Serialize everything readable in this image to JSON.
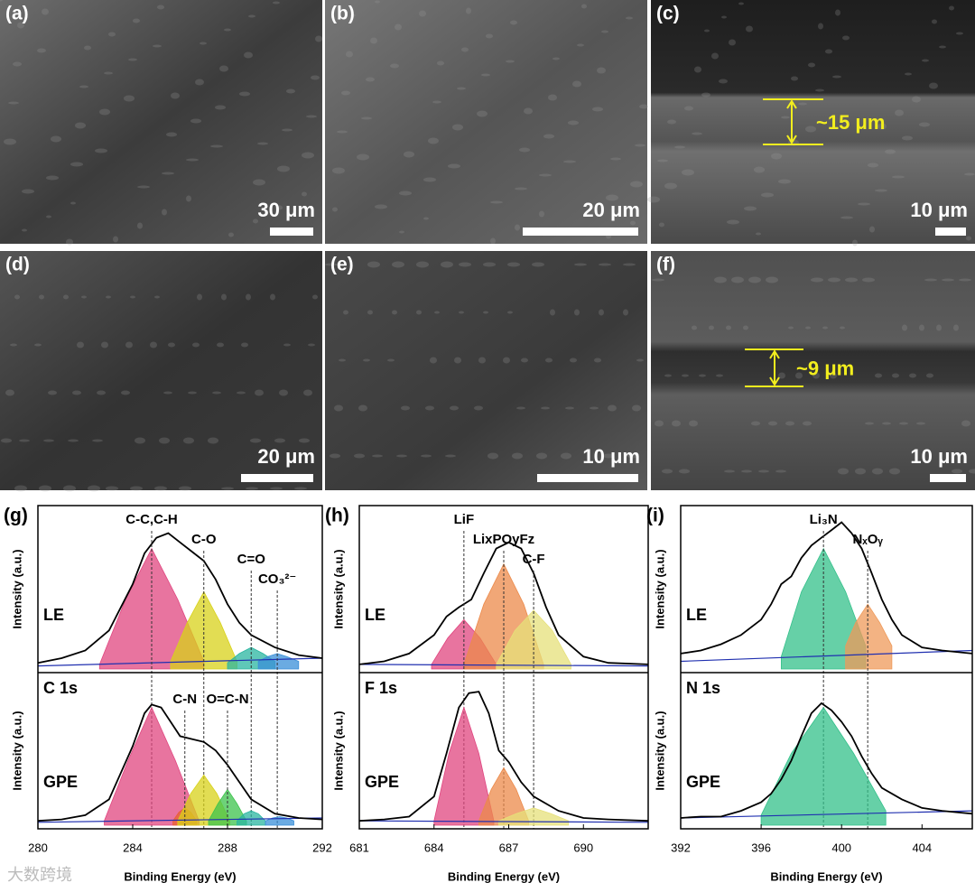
{
  "sem_panels": [
    {
      "label": "(a)",
      "scale_bar": "30 μm"
    },
    {
      "label": "(b)",
      "scale_bar": "20 μm"
    },
    {
      "label": "(c)",
      "scale_bar": "10 μm",
      "thickness": "~15 μm"
    },
    {
      "label": "(d)",
      "scale_bar": "20 μm"
    },
    {
      "label": "(e)",
      "scale_bar": "10 μm"
    },
    {
      "label": "(f)",
      "scale_bar": "10 μm",
      "thickness": "~9 μm"
    }
  ],
  "watermark": "大数跨境",
  "chart_data": [
    {
      "type": "line",
      "label": "(g)",
      "core_level": "C 1s",
      "x_label": "Binding Energy (eV)",
      "y_label": "Intensity (a.u.)",
      "xlim": [
        280,
        292
      ],
      "xticks": [
        280,
        284,
        288,
        292
      ],
      "ylim": [
        0,
        1
      ],
      "panels": [
        {
          "name": "LE",
          "series": [
            {
              "color": "#e0457f",
              "fill": true,
              "x": [
                282.6,
                283.7,
                284.8,
                285.9,
                287
              ],
              "values": [
                0.03,
                0.45,
                0.78,
                0.45,
                0.05
              ]
            },
            {
              "color": "#d8d21a",
              "fill": true,
              "x": [
                285.6,
                286.3,
                287,
                287.7,
                288.4
              ],
              "values": [
                0.05,
                0.3,
                0.5,
                0.3,
                0.05
              ]
            },
            {
              "color": "#2ab5a0",
              "fill": true,
              "x": [
                288,
                288.5,
                289,
                289.5,
                290
              ],
              "values": [
                0.04,
                0.1,
                0.14,
                0.1,
                0.05
              ]
            },
            {
              "color": "#3a8fd8",
              "fill": true,
              "x": [
                289.3,
                289.7,
                290.1,
                290.5,
                291
              ],
              "values": [
                0.05,
                0.08,
                0.1,
                0.08,
                0.05
              ]
            },
            {
              "color": "#2030b0",
              "x": [
                280,
                292
              ],
              "values": [
                0.02,
                0.07
              ]
            },
            {
              "color": "#000000",
              "x": [
                280,
                281,
                282,
                283,
                284,
                284.5,
                285,
                285.5,
                286,
                286.5,
                287,
                287.5,
                288,
                288.5,
                289,
                290,
                291,
                292
              ],
              "values": [
                0.04,
                0.07,
                0.12,
                0.25,
                0.55,
                0.75,
                0.85,
                0.88,
                0.82,
                0.76,
                0.7,
                0.58,
                0.42,
                0.3,
                0.22,
                0.14,
                0.09,
                0.07
              ]
            }
          ],
          "peaks": [
            {
              "label": "C-C,C-H",
              "x": 284.8
            },
            {
              "label": "C-O",
              "x": 287
            },
            {
              "label": "C=O",
              "x": 289
            },
            {
              "label": "CO₃²⁻",
              "x": 290.1
            }
          ]
        },
        {
          "name": "GPE",
          "series": [
            {
              "color": "#e0457f",
              "fill": true,
              "x": [
                282.8,
                283.8,
                284.8,
                285.8,
                286.8
              ],
              "values": [
                0.03,
                0.45,
                0.82,
                0.45,
                0.03
              ]
            },
            {
              "color": "#e86030",
              "fill": true,
              "x": [
                285.7,
                285.95,
                286.2,
                286.45,
                286.7
              ],
              "values": [
                0.03,
                0.09,
                0.12,
                0.09,
                0.03
              ]
            },
            {
              "color": "#d8d21a",
              "fill": true,
              "x": [
                285.9,
                286.45,
                287,
                287.55,
                288.1
              ],
              "values": [
                0.03,
                0.22,
                0.35,
                0.22,
                0.03
              ]
            },
            {
              "color": "#3cc34c",
              "fill": true,
              "x": [
                287.2,
                287.6,
                288,
                288.4,
                288.8
              ],
              "values": [
                0.03,
                0.15,
                0.25,
                0.15,
                0.03
              ]
            },
            {
              "color": "#2ab5a0",
              "fill": true,
              "x": [
                288.4,
                288.7,
                289,
                289.3,
                289.6
              ],
              "values": [
                0.03,
                0.08,
                0.1,
                0.08,
                0.03
              ]
            },
            {
              "color": "#3a8fd8",
              "fill": true,
              "x": [
                289.6,
                289.9,
                290.2,
                290.5,
                290.8
              ],
              "values": [
                0.03,
                0.05,
                0.06,
                0.05,
                0.03
              ]
            },
            {
              "color": "#2030b0",
              "x": [
                280,
                292
              ],
              "values": [
                0.02,
                0.05
              ]
            },
            {
              "color": "#000000",
              "x": [
                280,
                281,
                282,
                283,
                284,
                284.5,
                284.8,
                285.2,
                285.6,
                286,
                286.5,
                287,
                287.5,
                288,
                288.5,
                289,
                290,
                291,
                292
              ],
              "values": [
                0.03,
                0.04,
                0.07,
                0.18,
                0.55,
                0.78,
                0.84,
                0.82,
                0.72,
                0.62,
                0.6,
                0.58,
                0.52,
                0.42,
                0.3,
                0.18,
                0.08,
                0.05,
                0.04
              ]
            }
          ],
          "peaks": [
            {
              "label": "C-N",
              "x": 286.2
            },
            {
              "label": "O=C-N",
              "x": 288
            }
          ]
        }
      ]
    },
    {
      "type": "line",
      "label": "(h)",
      "core_level": "F 1s",
      "x_label": "Binding Energy (eV)",
      "y_label": "Intensity (a.u.)",
      "xlim": [
        681,
        692.6
      ],
      "xticks": [
        681,
        684,
        687,
        690
      ],
      "ylim": [
        0,
        1
      ],
      "panels": [
        {
          "name": "LE",
          "series": [
            {
              "color": "#e0457f",
              "fill": true,
              "x": [
                683.9,
                684.55,
                685.2,
                685.85,
                686.5
              ],
              "values": [
                0.03,
                0.2,
                0.32,
                0.2,
                0.03
              ]
            },
            {
              "color": "#ec8a4a",
              "fill": true,
              "x": [
                685.2,
                686,
                686.8,
                687.6,
                688.4
              ],
              "values": [
                0.03,
                0.42,
                0.68,
                0.42,
                0.03
              ]
            },
            {
              "color": "#e6e07a",
              "fill": true,
              "x": [
                686.5,
                687.25,
                688,
                688.75,
                689.5
              ],
              "values": [
                0.03,
                0.25,
                0.38,
                0.25,
                0.03
              ]
            },
            {
              "color": "#2030b0",
              "x": [
                681,
                692.6
              ],
              "values": [
                0.03,
                0.02
              ]
            },
            {
              "color": "#000000",
              "x": [
                681,
                682,
                683,
                684,
                684.5,
                685,
                685.5,
                686,
                686.5,
                687,
                687.5,
                688,
                688.5,
                689,
                690,
                691,
                692.6
              ],
              "values": [
                0.03,
                0.05,
                0.1,
                0.22,
                0.34,
                0.4,
                0.45,
                0.62,
                0.78,
                0.82,
                0.78,
                0.62,
                0.4,
                0.22,
                0.08,
                0.04,
                0.03
              ]
            }
          ],
          "peaks": [
            {
              "label": "LiF",
              "x": 685.2
            },
            {
              "label": "LixPOyFz",
              "x": 686.8
            },
            {
              "label": "C-F",
              "x": 688
            }
          ]
        },
        {
          "name": "GPE",
          "series": [
            {
              "color": "#e0457f",
              "fill": true,
              "x": [
                684,
                684.6,
                685.2,
                685.8,
                686.4
              ],
              "values": [
                0.03,
                0.5,
                0.82,
                0.5,
                0.03
              ]
            },
            {
              "color": "#ec8a4a",
              "fill": true,
              "x": [
                685.8,
                686.3,
                686.8,
                687.3,
                687.8
              ],
              "values": [
                0.03,
                0.25,
                0.4,
                0.25,
                0.03
              ]
            },
            {
              "color": "#e6e07a",
              "fill": true,
              "x": [
                686.6,
                687.3,
                688,
                688.7,
                689.4
              ],
              "values": [
                0.03,
                0.08,
                0.12,
                0.08,
                0.03
              ]
            },
            {
              "color": "#2030b0",
              "x": [
                681,
                692.6
              ],
              "values": [
                0.03,
                0.02
              ]
            },
            {
              "color": "#000000",
              "x": [
                681,
                682,
                683,
                684,
                684.5,
                685,
                685.4,
                685.8,
                686.2,
                686.6,
                687,
                687.5,
                688,
                689,
                690,
                691,
                692.6
              ],
              "values": [
                0.03,
                0.04,
                0.06,
                0.2,
                0.5,
                0.82,
                0.92,
                0.93,
                0.78,
                0.52,
                0.44,
                0.3,
                0.2,
                0.1,
                0.05,
                0.04,
                0.03
              ]
            }
          ],
          "peaks": []
        }
      ]
    },
    {
      "type": "line",
      "label": "(i)",
      "core_level": "N 1s",
      "x_label": "Binding Energy (eV)",
      "y_label": "Intensity (a.u.)",
      "xlim": [
        392,
        406.5
      ],
      "xticks": [
        392,
        396,
        400,
        404
      ],
      "ylim": [
        0,
        1
      ],
      "panels": [
        {
          "name": "LE",
          "series": [
            {
              "color": "#33c08a",
              "fill": true,
              "x": [
                397,
                398,
                399.1,
                400.2,
                401.2
              ],
              "values": [
                0.08,
                0.5,
                0.78,
                0.5,
                0.15
              ]
            },
            {
              "color": "#ef9a5a",
              "fill": true,
              "x": [
                400.2,
                400.7,
                401.3,
                401.9,
                402.5
              ],
              "values": [
                0.15,
                0.3,
                0.42,
                0.3,
                0.15
              ]
            },
            {
              "color": "#2030b0",
              "x": [
                392,
                406.5
              ],
              "values": [
                0.05,
                0.12
              ]
            },
            {
              "color": "#000000",
              "x": [
                392,
                393,
                394,
                395,
                396,
                396.5,
                397,
                397.5,
                398,
                398.5,
                399,
                399.5,
                400,
                400.5,
                401,
                401.5,
                402,
                402.5,
                403,
                404,
                405,
                406.5
              ],
              "values": [
                0.1,
                0.12,
                0.16,
                0.22,
                0.32,
                0.42,
                0.55,
                0.6,
                0.72,
                0.8,
                0.85,
                0.9,
                0.95,
                0.88,
                0.78,
                0.62,
                0.45,
                0.32,
                0.22,
                0.14,
                0.12,
                0.1
              ]
            }
          ],
          "peaks": [
            {
              "label": "Li₃N",
              "x": 399.1
            },
            {
              "label": "NₓOᵧ",
              "x": 401.3
            }
          ]
        },
        {
          "name": "GPE",
          "series": [
            {
              "color": "#33c08a",
              "fill": true,
              "x": [
                396,
                397.5,
                399.1,
                400.6,
                402.2
              ],
              "values": [
                0.07,
                0.5,
                0.82,
                0.5,
                0.1
              ]
            },
            {
              "color": "#2030b0",
              "x": [
                392,
                406.5
              ],
              "values": [
                0.05,
                0.1
              ]
            },
            {
              "color": "#000000",
              "x": [
                392,
                393,
                394,
                395,
                396,
                396.5,
                397,
                397.5,
                398,
                398.5,
                399,
                399.5,
                400,
                400.5,
                401,
                401.5,
                402,
                403,
                404,
                405,
                406.5
              ],
              "values": [
                0.05,
                0.06,
                0.06,
                0.1,
                0.16,
                0.22,
                0.32,
                0.45,
                0.62,
                0.78,
                0.85,
                0.8,
                0.72,
                0.62,
                0.48,
                0.36,
                0.26,
                0.18,
                0.12,
                0.1,
                0.08
              ]
            }
          ],
          "peaks": []
        }
      ]
    }
  ]
}
